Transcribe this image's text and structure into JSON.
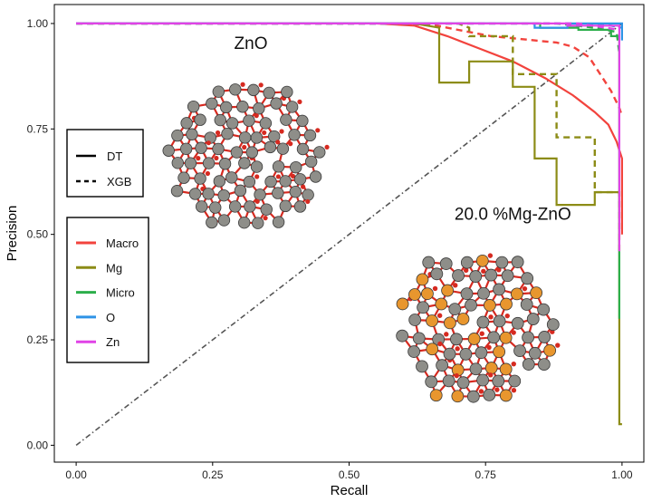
{
  "chart_data": {
    "type": "line",
    "title": "",
    "xlabel": "Recall",
    "ylabel": "Precision",
    "xlim": [
      -0.04,
      1.04
    ],
    "ylim": [
      -0.04,
      1.045
    ],
    "x_ticks": [
      0.0,
      0.25,
      0.5,
      0.75,
      1.0
    ],
    "x_tick_labels": [
      "0.00",
      "0.25",
      "0.50",
      "0.75",
      "1.00"
    ],
    "y_ticks": [
      0.0,
      0.25,
      0.5,
      0.75,
      1.0
    ],
    "y_tick_labels": [
      "0.00",
      "0.25",
      "0.50",
      "0.75",
      "1.00"
    ],
    "grid": false,
    "legend_linetype": {
      "placement": "left",
      "entries": [
        {
          "name": "DT",
          "dash": "solid"
        },
        {
          "name": "XGB",
          "dash": "dashed"
        }
      ]
    },
    "legend_color": {
      "placement": "left",
      "entries": [
        {
          "name": "Macro",
          "color": "#f2433d"
        },
        {
          "name": "Mg",
          "color": "#8c8c16"
        },
        {
          "name": "Micro",
          "color": "#2cae4a"
        },
        {
          "name": "O",
          "color": "#2e93e6"
        },
        {
          "name": "Zn",
          "color": "#e043e6"
        }
      ]
    },
    "annotations": [
      {
        "text": "ZnO",
        "x": 0.32,
        "y": 0.94
      },
      {
        "text": "20.0 %Mg-ZnO",
        "x": 0.8,
        "y": 0.535
      }
    ],
    "reference_line": {
      "x": [
        0,
        1
      ],
      "y": [
        0,
        1
      ],
      "style": "dotdash",
      "color": "#555555"
    },
    "series": [
      {
        "name": "Macro",
        "model": "DT",
        "color": "#f2433d",
        "dash": "solid",
        "x": [
          0,
          0.55,
          0.62,
          0.68,
          0.74,
          0.8,
          0.86,
          0.91,
          0.95,
          0.975,
          0.99,
          1.0,
          1.0
        ],
        "y": [
          1.0,
          1.0,
          0.995,
          0.97,
          0.94,
          0.91,
          0.87,
          0.83,
          0.79,
          0.76,
          0.72,
          0.68,
          0.5
        ]
      },
      {
        "name": "Macro",
        "model": "XGB",
        "color": "#f2433d",
        "dash": "dashed",
        "x": [
          0,
          0.6,
          0.66,
          0.72,
          0.76,
          0.8,
          0.84,
          0.88,
          0.91,
          0.94,
          0.96,
          0.98,
          0.995,
          1.0
        ],
        "y": [
          1.0,
          1.0,
          0.995,
          0.98,
          0.97,
          0.965,
          0.96,
          0.955,
          0.945,
          0.92,
          0.88,
          0.84,
          0.8,
          0.78
        ]
      },
      {
        "name": "Mg",
        "model": "DT",
        "color": "#8c8c16",
        "dash": "solid",
        "x": [
          0,
          0.62,
          0.665,
          0.665,
          0.72,
          0.72,
          0.8,
          0.8,
          0.84,
          0.84,
          0.88,
          0.88,
          0.95,
          0.95,
          0.995,
          0.995,
          1.0
        ],
        "y": [
          1.0,
          1.0,
          0.99,
          0.86,
          0.86,
          0.91,
          0.91,
          0.85,
          0.85,
          0.68,
          0.68,
          0.57,
          0.57,
          0.6,
          0.6,
          0.05,
          0.05
        ]
      },
      {
        "name": "Mg",
        "model": "XGB",
        "color": "#8c8c16",
        "dash": "dashed",
        "x": [
          0,
          0.7,
          0.72,
          0.72,
          0.8,
          0.8,
          0.88,
          0.88,
          0.95,
          0.95,
          0.995,
          0.995
        ],
        "y": [
          1.0,
          1.0,
          0.99,
          0.97,
          0.97,
          0.88,
          0.88,
          0.73,
          0.73,
          0.6,
          0.6,
          0.45
        ]
      },
      {
        "name": "Micro",
        "model": "DT",
        "color": "#2cae4a",
        "dash": "solid",
        "x": [
          0,
          0.85,
          0.85,
          0.92,
          0.92,
          0.98,
          0.98,
          0.995,
          0.995
        ],
        "y": [
          1.0,
          1.0,
          0.99,
          0.99,
          0.985,
          0.985,
          0.97,
          0.97,
          0.3
        ]
      },
      {
        "name": "Micro",
        "model": "XGB",
        "color": "#2cae4a",
        "dash": "dashed",
        "x": [
          0,
          0.88,
          0.95,
          0.99,
          0.995
        ],
        "y": [
          1.0,
          1.0,
          0.99,
          0.98,
          0.93
        ]
      },
      {
        "name": "O",
        "model": "DT",
        "color": "#2e93e6",
        "dash": "solid",
        "x": [
          0,
          0.84,
          0.84,
          0.9,
          0.9,
          1.0,
          1.0
        ],
        "y": [
          1.0,
          1.0,
          0.99,
          0.99,
          1.0,
          1.0,
          0.96
        ]
      },
      {
        "name": "O",
        "model": "XGB",
        "color": "#2e93e6",
        "dash": "dashed",
        "x": [
          0,
          0.9,
          0.98,
          1.0
        ],
        "y": [
          1.0,
          1.0,
          0.995,
          0.99
        ]
      },
      {
        "name": "Zn",
        "model": "DT",
        "color": "#e043e6",
        "dash": "solid",
        "x": [
          0,
          0.9,
          0.9,
          0.995,
          0.995
        ],
        "y": [
          1.0,
          1.0,
          0.995,
          0.995,
          0.46
        ]
      },
      {
        "name": "Zn",
        "model": "XGB",
        "color": "#e043e6",
        "dash": "dashed",
        "x": [
          0,
          0.92,
          0.97,
          0.995
        ],
        "y": [
          1.0,
          1.0,
          0.99,
          0.985
        ]
      }
    ]
  }
}
